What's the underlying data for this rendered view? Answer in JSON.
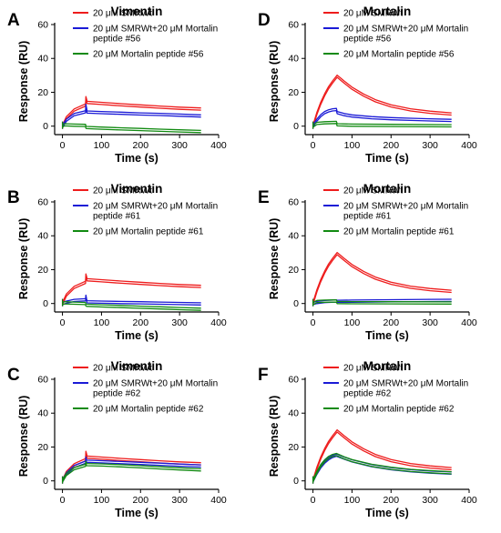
{
  "figure_colors": {
    "red": "#ee1c1c",
    "blue": "#1a1ad6",
    "green": "#118a11"
  },
  "chart_data": [
    {
      "type": "line",
      "panel_label": "A",
      "title": "Vimentin",
      "xlabel": "Time (s)",
      "ylabel": "Response (RU)",
      "xlim": [
        -20,
        400
      ],
      "ylim": [
        -5,
        60
      ],
      "xticks": [
        "0",
        "100",
        "200",
        "300",
        "400"
      ],
      "yticks": [
        "0",
        "20",
        "40",
        "60"
      ],
      "legend_position": "top-right",
      "series": [
        {
          "name": "20 μM SMRWt",
          "color": "#ee1c1c",
          "x": [
            0,
            10,
            30,
            59,
            60,
            62,
            63,
            100,
            150,
            200,
            250,
            300,
            355
          ],
          "y": [
            0,
            5.0,
            9.5,
            12.5,
            16.8,
            15.2,
            14.0,
            13.4,
            12.6,
            11.9,
            11.2,
            10.6,
            10.1
          ]
        },
        {
          "name": "20 μM SMRWt+20 μM Mortalin peptide #56",
          "color": "#1a1ad6",
          "x": [
            0,
            10,
            30,
            59,
            60,
            62,
            63,
            100,
            150,
            200,
            250,
            300,
            355
          ],
          "y": [
            0,
            3.5,
            6.8,
            8.5,
            12.3,
            10.0,
            8.3,
            8.0,
            7.6,
            7.2,
            6.9,
            6.5,
            6.0
          ]
        },
        {
          "name": "20 μM Mortalin peptide #56",
          "color": "#118a11",
          "x": [
            0,
            5,
            30,
            59,
            60,
            62,
            100,
            150,
            200,
            250,
            300,
            355
          ],
          "y": [
            0,
            0.8,
            0.6,
            0.4,
            -0.6,
            -0.8,
            -1.2,
            -1.6,
            -2.0,
            -2.4,
            -2.8,
            -3.2
          ]
        }
      ]
    },
    {
      "type": "line",
      "panel_label": "D",
      "title": "Mortalin",
      "xlabel": "Time (s)",
      "ylabel": "Response (RU)",
      "xlim": [
        -20,
        400
      ],
      "ylim": [
        -5,
        60
      ],
      "xticks": [
        "0",
        "100",
        "200",
        "300",
        "400"
      ],
      "yticks": [
        "0",
        "20",
        "40",
        "60"
      ],
      "legend_position": "top-right",
      "series": [
        {
          "name": "20 μM SMRWt",
          "color": "#ee1c1c",
          "x": [
            0,
            10,
            20,
            30,
            40,
            50,
            62,
            80,
            100,
            130,
            160,
            200,
            250,
            300,
            355
          ],
          "y": [
            0,
            7.5,
            13.5,
            18.5,
            22.7,
            26.0,
            29.5,
            26.0,
            22.4,
            18.3,
            15.0,
            12.0,
            9.6,
            8.2,
            7.2
          ]
        },
        {
          "name": "20 μM SMRWt+20 μM Mortalin peptide #56",
          "color": "#1a1ad6",
          "x": [
            0,
            10,
            20,
            30,
            40,
            50,
            60,
            62,
            80,
            100,
            150,
            200,
            250,
            300,
            355
          ],
          "y": [
            0,
            3.6,
            6.2,
            8.0,
            9.0,
            9.6,
            9.8,
            8.0,
            6.8,
            6.0,
            5.0,
            4.4,
            4.0,
            3.7,
            3.4
          ]
        },
        {
          "name": "20 μM Mortalin peptide #56",
          "color": "#118a11",
          "x": [
            0,
            10,
            30,
            60,
            62,
            100,
            200,
            355
          ],
          "y": [
            0,
            1.6,
            2.0,
            2.2,
            0.8,
            0.6,
            0.4,
            0.2
          ]
        }
      ]
    },
    {
      "type": "line",
      "panel_label": "B",
      "title": "Vimentin",
      "xlabel": "Time (s)",
      "ylabel": "Response (RU)",
      "xlim": [
        -20,
        400
      ],
      "ylim": [
        -5,
        60
      ],
      "xticks": [
        "0",
        "100",
        "200",
        "300",
        "400"
      ],
      "yticks": [
        "0",
        "20",
        "40",
        "60"
      ],
      "legend_position": "top-right",
      "series": [
        {
          "name": "20 μM SMRWt",
          "color": "#ee1c1c",
          "x": [
            0,
            10,
            30,
            59,
            60,
            62,
            63,
            100,
            150,
            200,
            250,
            300,
            355
          ],
          "y": [
            0,
            5.0,
            9.5,
            12.5,
            16.8,
            15.2,
            14.0,
            13.4,
            12.6,
            11.9,
            11.2,
            10.6,
            10.1
          ]
        },
        {
          "name": "20 μM SMRWt+20 μM Mortalin peptide #61",
          "color": "#1a1ad6",
          "x": [
            0,
            10,
            30,
            59,
            60,
            62,
            63,
            100,
            150,
            200,
            250,
            300,
            355
          ],
          "y": [
            0,
            0.8,
            1.8,
            2.2,
            4.3,
            2.0,
            1.0,
            0.8,
            0.6,
            0.4,
            0.2,
            0.0,
            -0.2
          ]
        },
        {
          "name": "20 μM Mortalin peptide #61",
          "color": "#118a11",
          "x": [
            0,
            5,
            30,
            59,
            60,
            62,
            100,
            150,
            200,
            250,
            300,
            355
          ],
          "y": [
            0,
            0.4,
            0.2,
            0.0,
            -0.8,
            -1.0,
            -1.4,
            -1.8,
            -2.2,
            -2.6,
            -3.0,
            -3.4
          ]
        }
      ]
    },
    {
      "type": "line",
      "panel_label": "E",
      "title": "Mortalin",
      "xlabel": "Time (s)",
      "ylabel": "Response (RU)",
      "xlim": [
        -20,
        400
      ],
      "ylim": [
        -5,
        60
      ],
      "xticks": [
        "0",
        "100",
        "200",
        "300",
        "400"
      ],
      "yticks": [
        "0",
        "20",
        "40",
        "60"
      ],
      "legend_position": "top-right",
      "series": [
        {
          "name": "20 μM SMRWt",
          "color": "#ee1c1c",
          "x": [
            0,
            10,
            20,
            30,
            40,
            50,
            62,
            80,
            100,
            130,
            160,
            200,
            250,
            300,
            355
          ],
          "y": [
            0,
            7.5,
            13.5,
            18.5,
            22.7,
            26.0,
            29.5,
            26.0,
            22.4,
            18.3,
            15.0,
            12.0,
            9.6,
            8.2,
            7.2
          ]
        },
        {
          "name": "20 μM SMRWt+20 μM Mortalin peptide #61",
          "color": "#1a1ad6",
          "x": [
            0,
            10,
            30,
            60,
            62,
            100,
            200,
            300,
            355
          ],
          "y": [
            0,
            0.6,
            1.2,
            1.5,
            1.3,
            1.4,
            1.6,
            1.8,
            1.9
          ]
        },
        {
          "name": "20 μM Mortalin peptide #61",
          "color": "#118a11",
          "x": [
            0,
            10,
            30,
            60,
            62,
            100,
            200,
            355
          ],
          "y": [
            0,
            1.2,
            1.4,
            1.5,
            0.6,
            0.5,
            0.4,
            0.3
          ]
        }
      ]
    },
    {
      "type": "line",
      "panel_label": "C",
      "title": "Vimentin",
      "xlabel": "Time (s)",
      "ylabel": "Response (RU)",
      "xlim": [
        -20,
        400
      ],
      "ylim": [
        -5,
        60
      ],
      "xticks": [
        "0",
        "100",
        "200",
        "300",
        "400"
      ],
      "yticks": [
        "0",
        "20",
        "40",
        "60"
      ],
      "legend_position": "top-right",
      "series": [
        {
          "name": "20 μM SMRWt",
          "color": "#ee1c1c",
          "x": [
            0,
            10,
            30,
            59,
            60,
            62,
            63,
            100,
            150,
            200,
            250,
            300,
            355
          ],
          "y": [
            0,
            5.0,
            9.5,
            12.5,
            16.8,
            15.2,
            14.0,
            13.4,
            12.6,
            11.9,
            11.2,
            10.6,
            10.1
          ]
        },
        {
          "name": "20 μM SMRWt+20 μM Mortalin peptide #62",
          "color": "#1a1ad6",
          "x": [
            0,
            10,
            30,
            59,
            60,
            62,
            100,
            150,
            200,
            250,
            300,
            355
          ],
          "y": [
            0,
            4.2,
            8.5,
            11.0,
            13.5,
            11.6,
            11.3,
            10.8,
            10.3,
            9.8,
            9.3,
            8.8
          ]
        },
        {
          "name": "20 μM Mortalin peptide #62",
          "color": "#118a11",
          "x": [
            0,
            10,
            30,
            59,
            60,
            62,
            100,
            150,
            200,
            250,
            300,
            355
          ],
          "y": [
            0,
            3.8,
            7.2,
            9.2,
            10.8,
            9.6,
            9.4,
            8.9,
            8.3,
            7.7,
            7.1,
            6.5
          ]
        }
      ]
    },
    {
      "type": "line",
      "panel_label": "F",
      "title": "Mortalin",
      "xlabel": "Time (s)",
      "ylabel": "Response (RU)",
      "xlim": [
        -20,
        400
      ],
      "ylim": [
        -5,
        60
      ],
      "xticks": [
        "0",
        "100",
        "200",
        "300",
        "400"
      ],
      "yticks": [
        "0",
        "20",
        "40",
        "60"
      ],
      "legend_position": "top-right",
      "series": [
        {
          "name": "20 μM SMRWt",
          "color": "#ee1c1c",
          "x": [
            0,
            10,
            20,
            30,
            40,
            50,
            62,
            80,
            100,
            130,
            160,
            200,
            250,
            300,
            355
          ],
          "y": [
            0,
            7.5,
            13.5,
            18.5,
            22.7,
            26.0,
            29.5,
            26.0,
            22.4,
            18.3,
            15.0,
            12.0,
            9.6,
            8.2,
            7.2
          ]
        },
        {
          "name": "20 μM SMRWt+20 μM Mortalin peptide #62",
          "color": "#1a1ad6",
          "x": [
            0,
            10,
            20,
            30,
            40,
            50,
            60,
            80,
            100,
            150,
            200,
            250,
            300,
            355
          ],
          "y": [
            0,
            4.5,
            8.2,
            11.0,
            13.0,
            14.4,
            15.2,
            13.4,
            11.8,
            9.0,
            7.2,
            6.0,
            5.2,
            4.6
          ]
        },
        {
          "name": "20 μM Mortalin peptide #62",
          "color": "#118a11",
          "x": [
            0,
            10,
            20,
            30,
            40,
            50,
            60,
            80,
            100,
            150,
            200,
            250,
            300,
            355
          ],
          "y": [
            0,
            5.0,
            9.0,
            11.8,
            13.8,
            15.0,
            15.6,
            13.6,
            12.0,
            9.2,
            7.4,
            6.2,
            5.4,
            4.8
          ]
        }
      ]
    }
  ]
}
